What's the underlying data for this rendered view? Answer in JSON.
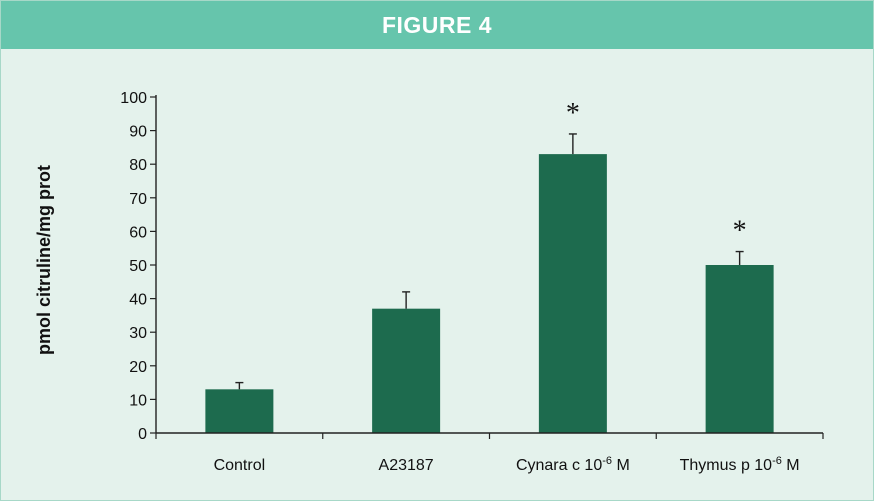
{
  "header": {
    "title": "FIGURE 4"
  },
  "colors": {
    "header_band": "#66c5ac",
    "panel_background": "#e4f2ec",
    "bar": "#1d6b4e",
    "axis": "#222222",
    "header_text": "#ffffff"
  },
  "chart_data": {
    "type": "bar",
    "title": "",
    "xlabel": "",
    "ylabel": "pmol citruline/mg prot",
    "ylim": [
      0,
      100
    ],
    "yticks": [
      0,
      10,
      20,
      30,
      40,
      50,
      60,
      70,
      80,
      90,
      100
    ],
    "categories": [
      {
        "label": "Control",
        "sup": "",
        "suffix": ""
      },
      {
        "label": "A23187",
        "sup": "",
        "suffix": ""
      },
      {
        "label": "Cynara c 10",
        "sup": "-6",
        "suffix": " M"
      },
      {
        "label": "Thymus p 10",
        "sup": "-6",
        "suffix": " M"
      }
    ],
    "values": [
      13,
      37,
      83,
      50
    ],
    "error_bars": [
      2,
      5,
      6,
      4
    ],
    "significance_markers": [
      "",
      "",
      "*",
      "*"
    ],
    "grid": false,
    "legend": "none"
  }
}
